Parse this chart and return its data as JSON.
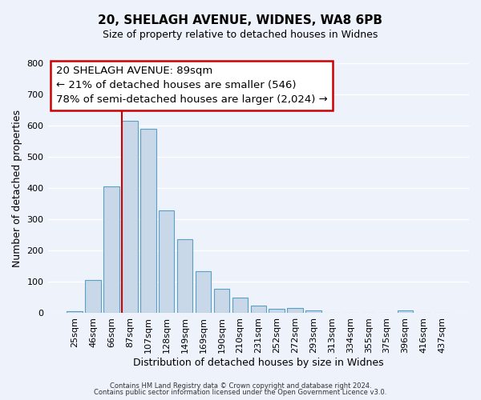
{
  "title1": "20, SHELAGH AVENUE, WIDNES, WA8 6PB",
  "title2": "Size of property relative to detached houses in Widnes",
  "xlabel": "Distribution of detached houses by size in Widnes",
  "ylabel": "Number of detached properties",
  "bar_color": "#c8d8e8",
  "bar_edge_color": "#5a9fc8",
  "background_color": "#eef2fa",
  "grid_color": "#ffffff",
  "ylim": [
    0,
    800
  ],
  "yticks": [
    0,
    100,
    200,
    300,
    400,
    500,
    600,
    700,
    800
  ],
  "bin_labels": [
    "25sqm",
    "46sqm",
    "66sqm",
    "87sqm",
    "107sqm",
    "128sqm",
    "149sqm",
    "169sqm",
    "190sqm",
    "210sqm",
    "231sqm",
    "252sqm",
    "272sqm",
    "293sqm",
    "313sqm",
    "334sqm",
    "355sqm",
    "375sqm",
    "396sqm",
    "416sqm",
    "437sqm"
  ],
  "bar_heights": [
    6,
    105,
    405,
    615,
    590,
    330,
    238,
    135,
    77,
    50,
    24,
    15,
    17,
    8,
    0,
    0,
    0,
    0,
    8,
    0,
    0
  ],
  "annotation_line1": "20 SHELAGH AVENUE: 89sqm",
  "annotation_line2": "← 21% of detached houses are smaller (546)",
  "annotation_line3": "78% of semi-detached houses are larger (2,024) →",
  "vline_color": "#cc0000",
  "footer_text1": "Contains HM Land Registry data © Crown copyright and database right 2024.",
  "footer_text2": "Contains public sector information licensed under the Open Government Licence v3.0.",
  "box_edge_color": "#cc0000",
  "box_face_color": "#ffffff",
  "title_fontsize": 11,
  "subtitle_fontsize": 9,
  "ann_fontsize": 9.5,
  "xlabel_fontsize": 9,
  "ylabel_fontsize": 9,
  "tick_fontsize": 8
}
